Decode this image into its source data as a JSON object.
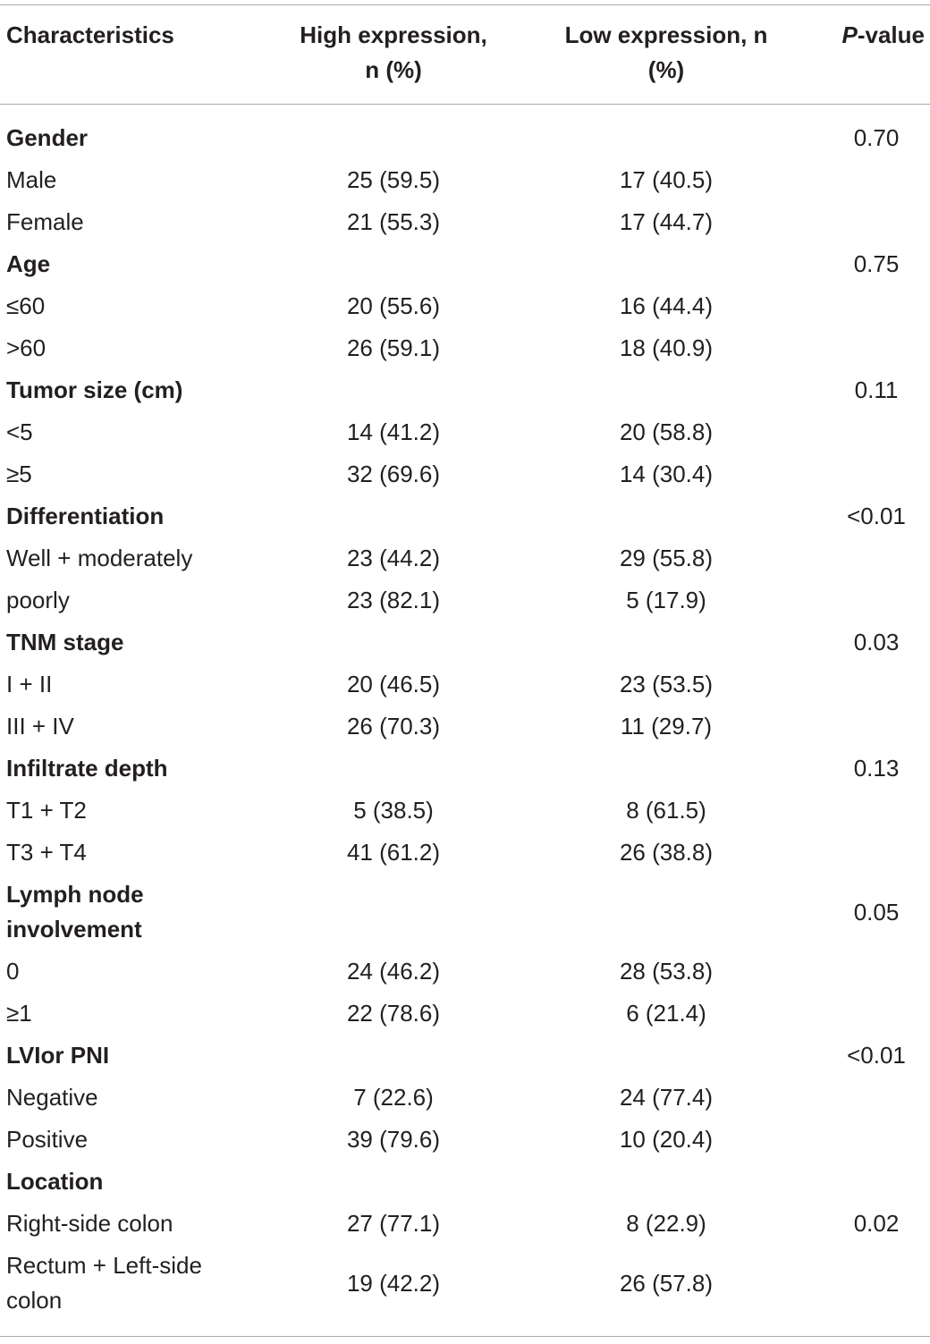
{
  "table": {
    "header": [
      "Characteristics",
      "High expression, n (%)",
      "Low expression, n (%)",
      "P-value"
    ],
    "groups": [
      {
        "title": "Gender",
        "p_value": "0.70",
        "rows": [
          {
            "label": "Male",
            "high": "25 (59.5)",
            "low": "17 (40.5)"
          },
          {
            "label": "Female",
            "high": "21 (55.3)",
            "low": "17 (44.7)"
          }
        ]
      },
      {
        "title": "Age",
        "p_value": "0.75",
        "rows": [
          {
            "label": "≤60",
            "high": "20 (55.6)",
            "low": "16 (44.4)"
          },
          {
            "label": ">60",
            "high": "26 (59.1)",
            "low": "18 (40.9)"
          }
        ]
      },
      {
        "title": "Tumor size (cm)",
        "p_value": "0.11",
        "rows": [
          {
            "label": "<5",
            "high": "14 (41.2)",
            "low": "20 (58.8)"
          },
          {
            "label": "≥5",
            "high": "32 (69.6)",
            "low": "14 (30.4)"
          }
        ]
      },
      {
        "title": "Differentiation",
        "p_value": "<0.01",
        "rows": [
          {
            "label": "Well + moderately",
            "high": "23 (44.2)",
            "low": "29 (55.8)"
          },
          {
            "label": "poorly",
            "high": "23 (82.1)",
            "low": "5 (17.9)"
          }
        ]
      },
      {
        "title": "TNM stage",
        "p_value": "0.03",
        "rows": [
          {
            "label": "I + II",
            "high": "20 (46.5)",
            "low": "23 (53.5)"
          },
          {
            "label": "III + IV",
            "high": "26 (70.3)",
            "low": "11 (29.7)"
          }
        ]
      },
      {
        "title": "Infiltrate depth",
        "p_value": "0.13",
        "rows": [
          {
            "label": "T1 + T2",
            "high": "5 (38.5)",
            "low": "8 (61.5)"
          },
          {
            "label": "T3 + T4",
            "high": "41 (61.2)",
            "low": "26 (38.8)"
          }
        ]
      },
      {
        "title": "Lymph node involvement",
        "p_value": "0.05",
        "rows": [
          {
            "label": "0",
            "high": "24 (46.2)",
            "low": "28 (53.8)"
          },
          {
            "label": "≥1",
            "high": "22 (78.6)",
            "low": "6 (21.4)"
          }
        ]
      },
      {
        "title": "LVIor PNI",
        "p_value": "<0.01",
        "rows": [
          {
            "label": "Negative",
            "high": "7 (22.6)",
            "low": "24 (77.4)"
          },
          {
            "label": "Positive",
            "high": "39 (79.6)",
            "low": "10 (20.4)"
          }
        ]
      },
      {
        "title": "Location",
        "rows": [
          {
            "label": "Right-side colon",
            "high": "27 (77.1)",
            "low": "8 (22.9)",
            "p_value": "0.02"
          },
          {
            "label": "Rectum + Left-side colon",
            "high": "19 (42.2)",
            "low": "26 (57.8)"
          }
        ]
      }
    ]
  }
}
